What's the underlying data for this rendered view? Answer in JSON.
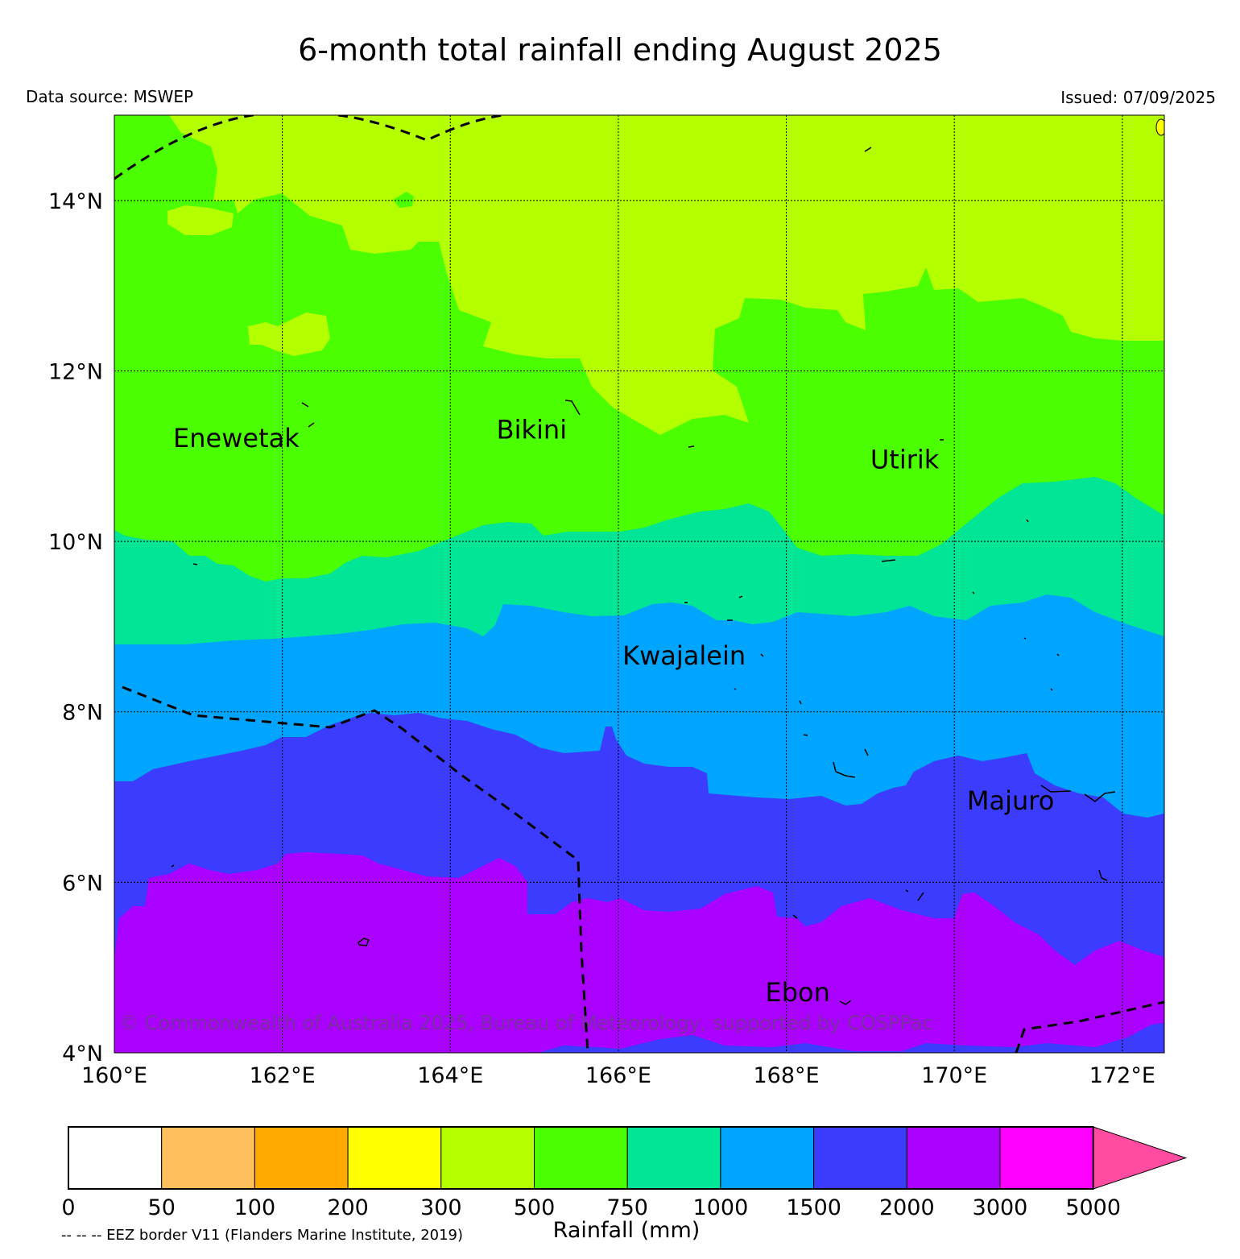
{
  "title": "6-month total rainfall ending August 2025",
  "data_source": "Data source: MSWEP",
  "issued": "Issued: 07/09/2025",
  "copyright": "© Commonwealth of Australia 2025, Bureau of Meteorology, supported by COSPPac",
  "map": {
    "lon_range": [
      160,
      172.5
    ],
    "lat_range": [
      4,
      15
    ],
    "lon_ticks": [
      {
        "value": 160,
        "label": "160°E"
      },
      {
        "value": 162,
        "label": "162°E"
      },
      {
        "value": 164,
        "label": "164°E"
      },
      {
        "value": 166,
        "label": "166°E"
      },
      {
        "value": 168,
        "label": "168°E"
      },
      {
        "value": 170,
        "label": "170°E"
      },
      {
        "value": 172,
        "label": "172°E"
      }
    ],
    "lat_ticks": [
      {
        "value": 4,
        "label": "4°N"
      },
      {
        "value": 6,
        "label": "6°N"
      },
      {
        "value": 8,
        "label": "8°N"
      },
      {
        "value": 10,
        "label": "10°N"
      },
      {
        "value": 12,
        "label": "12°N"
      },
      {
        "value": 14,
        "label": "14°N"
      }
    ],
    "places": [
      {
        "name": "Enewetak",
        "lon": 160.7,
        "lat": 11.2
      },
      {
        "name": "Bikini",
        "lon": 164.55,
        "lat": 11.3
      },
      {
        "name": "Utirik",
        "lon": 169.0,
        "lat": 10.95
      },
      {
        "name": "Kwajalein",
        "lon": 166.05,
        "lat": 8.65
      },
      {
        "name": "Majuro",
        "lon": 170.15,
        "lat": 6.95
      },
      {
        "name": "Ebon",
        "lon": 167.75,
        "lat": 4.7
      }
    ]
  },
  "legend": {
    "label": "Rainfall (mm)",
    "bins": [
      {
        "color": "#ffffff",
        "from": 0,
        "to": 50
      },
      {
        "color": "#ffbf5c",
        "from": 50,
        "to": 100
      },
      {
        "color": "#ffaa00",
        "from": 100,
        "to": 200
      },
      {
        "color": "#ffff00",
        "from": 200,
        "to": 300
      },
      {
        "color": "#b4ff00",
        "from": 300,
        "to": 500
      },
      {
        "color": "#4bff00",
        "from": 500,
        "to": 750
      },
      {
        "color": "#00e696",
        "from": 750,
        "to": 1000
      },
      {
        "color": "#00a5ff",
        "from": 1000,
        "to": 1500
      },
      {
        "color": "#3c3cff",
        "from": 1500,
        "to": 2000
      },
      {
        "color": "#aa00ff",
        "from": 2000,
        "to": 3000
      },
      {
        "color": "#ff00ff",
        "from": 3000,
        "to": 5000
      }
    ],
    "overflow_color": "#ff4ba0",
    "tick_labels": [
      "0",
      "50",
      "100",
      "200",
      "300",
      "500",
      "750",
      "1000",
      "1500",
      "2000",
      "3000",
      "5000"
    ]
  },
  "eez_note": "-- -- -- EEZ border V11 (Flanders Marine Institute, 2019)"
}
